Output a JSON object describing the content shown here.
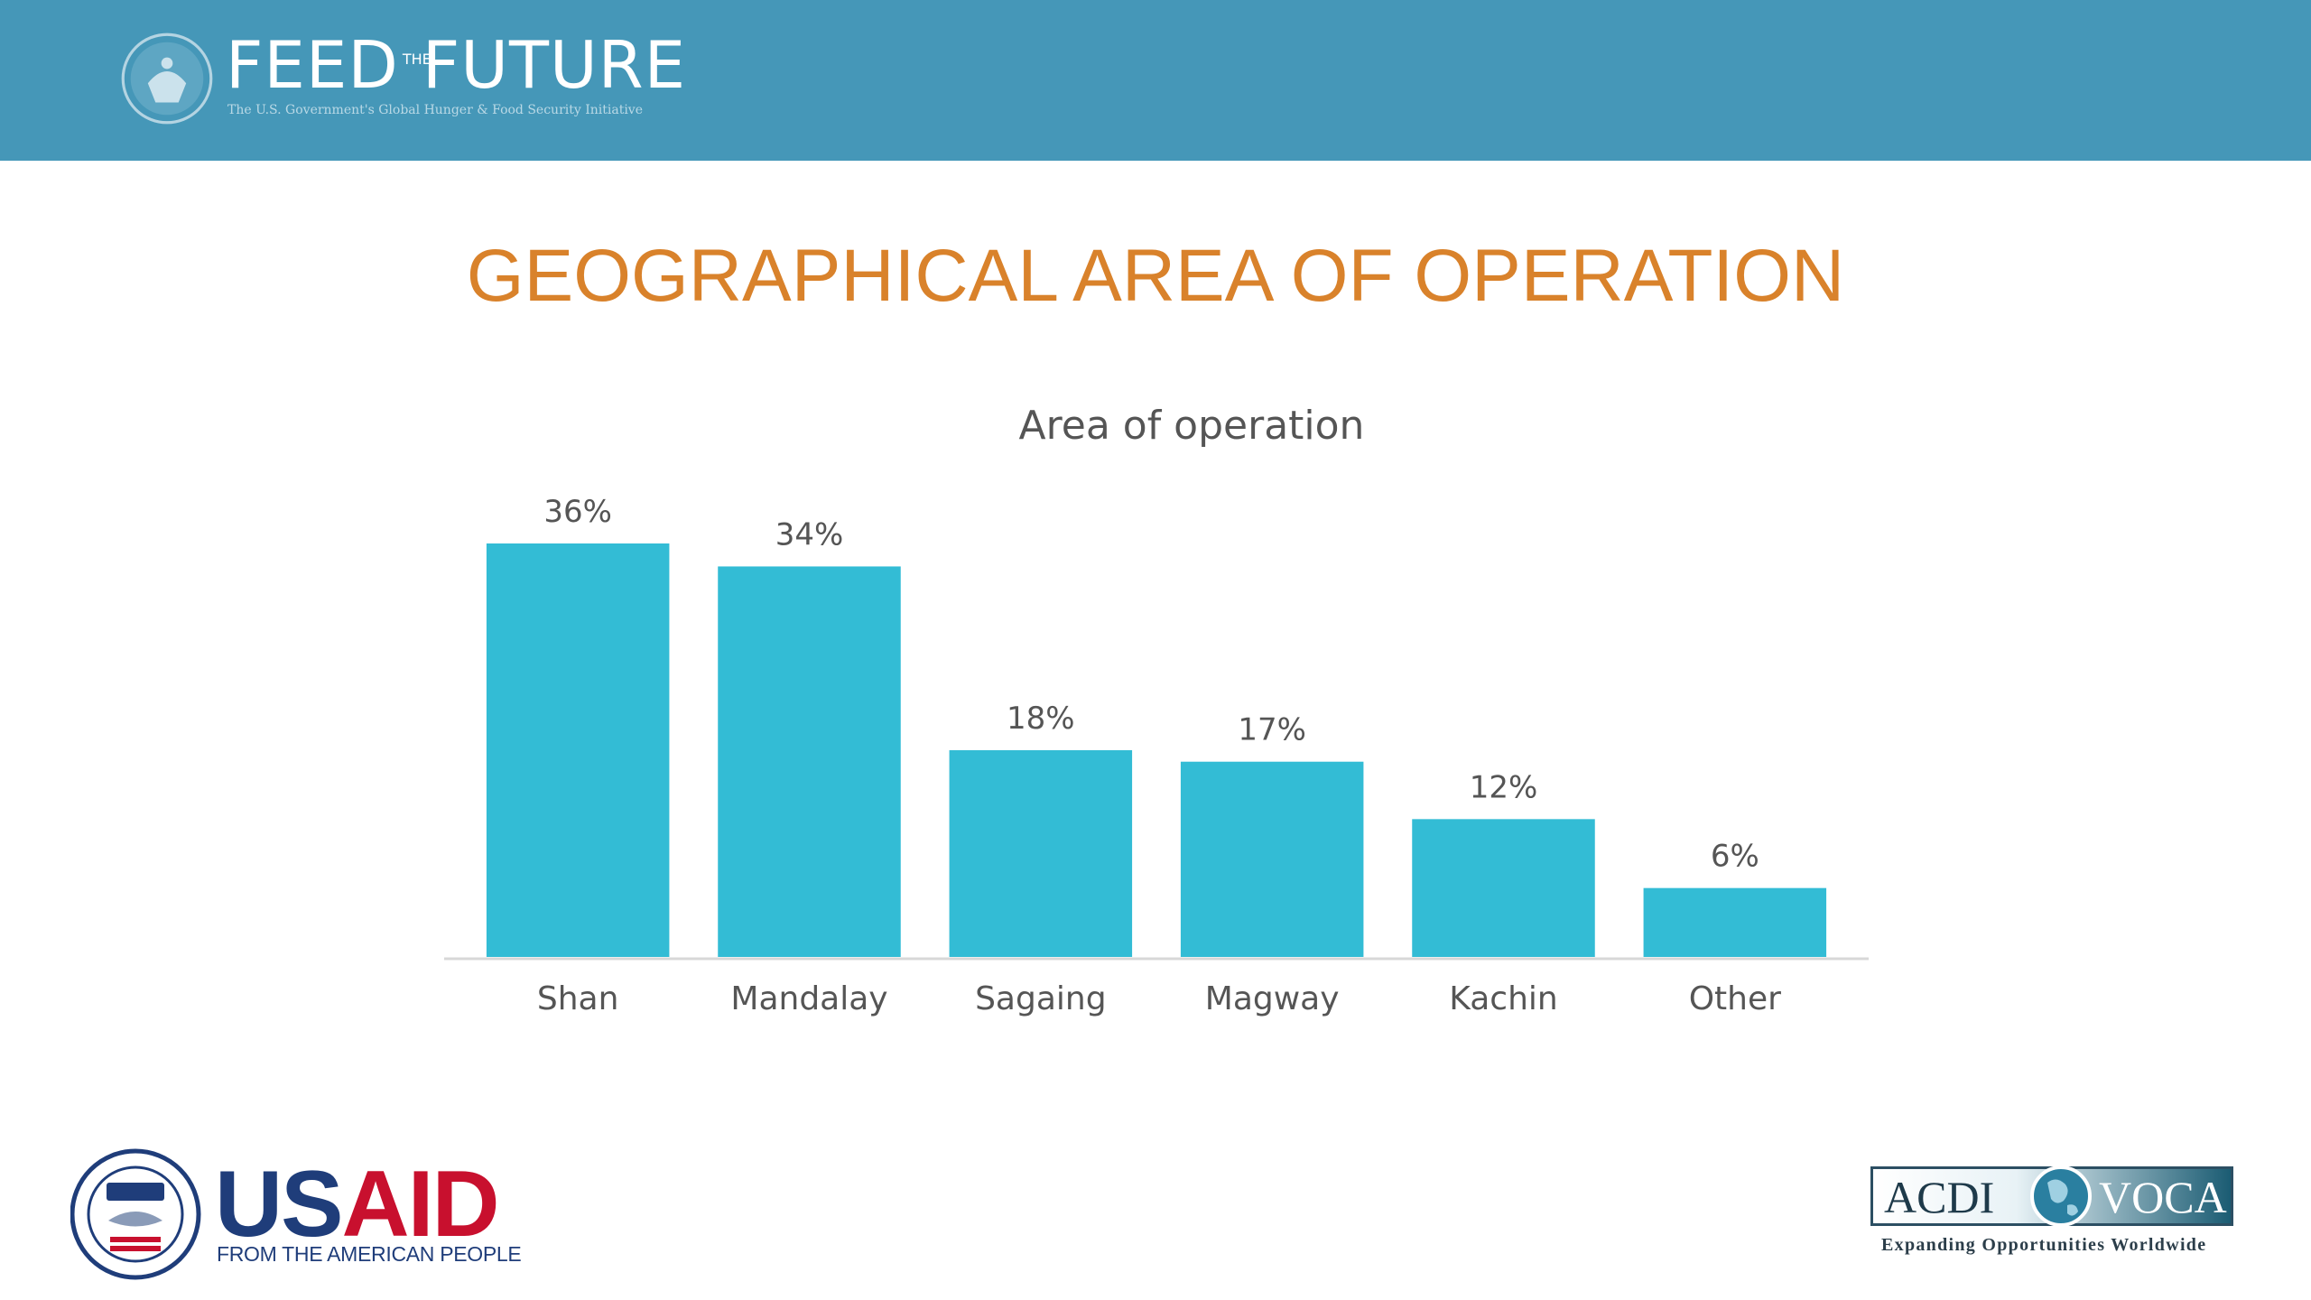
{
  "header": {
    "logo_text_left": "FEED",
    "logo_text_the": "THE",
    "logo_text_right": "FUTURE",
    "logo_tagline": "The U.S. Government's Global Hunger & Food Security Initiative"
  },
  "slide": {
    "title": "GEOGRAPHICAL AREA OF OPERATION"
  },
  "chart_data": {
    "type": "bar",
    "title": "Area of operation",
    "categories": [
      "Shan",
      "Mandalay",
      "Sagaing",
      "Magway",
      "Kachin",
      "Other"
    ],
    "values": [
      36,
      34,
      18,
      17,
      12,
      6
    ],
    "value_labels": [
      "36%",
      "34%",
      "18%",
      "17%",
      "12%",
      "6%"
    ],
    "unit": "%",
    "ylim": [
      0,
      36
    ],
    "grid": false,
    "legend": "none",
    "bar_color": "#33bcd5"
  },
  "footer": {
    "usaid_us": "US",
    "usaid_aid": "AID",
    "usaid_tagline": "FROM THE AMERICAN PEOPLE",
    "acdi_left": "ACDI",
    "acdi_right": "VOCA",
    "acdi_tagline": "Expanding Opportunities Worldwide"
  },
  "colors": {
    "header_bg": "#4597b8",
    "title": "#d9822b",
    "bar": "#33bcd5",
    "text": "#555555"
  }
}
